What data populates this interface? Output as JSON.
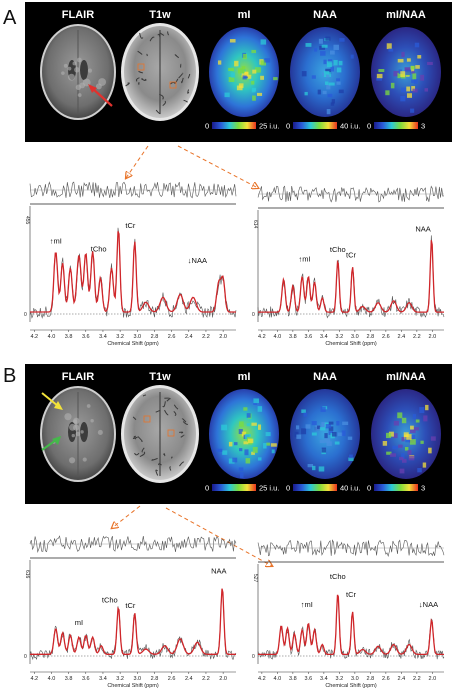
{
  "panels": [
    {
      "letter": "A",
      "mri_labels": [
        "FLAIR",
        "T1w",
        "mI",
        "NAA",
        "mI/NAA"
      ],
      "colorbars": [
        {
          "min": "0",
          "max": "25 i.u."
        },
        {
          "min": "0",
          "max": "40 i.u."
        },
        {
          "min": "0",
          "max": "3"
        }
      ],
      "spectra": [
        {
          "y_label": "455",
          "x_title": "Chemical Shift (ppm)",
          "x_ticks": [
            "4.2",
            "4.0",
            "3.8",
            "3.6",
            "3.4",
            "3.2",
            "3.0",
            "2.8",
            "2.6",
            "2.4",
            "2.2",
            "2.0"
          ],
          "zero_label": "0",
          "peaks": [
            "↑mI",
            "tCho",
            "tCr",
            "↓NAA"
          ]
        },
        {
          "y_label": "614",
          "x_title": "Chemical Shift (ppm)",
          "x_ticks": [
            "4.2",
            "4.0",
            "3.8",
            "3.6",
            "3.4",
            "3.2",
            "3.0",
            "2.8",
            "2.6",
            "2.4",
            "2.2",
            "2.0"
          ],
          "zero_label": "0",
          "peaks": [
            "↑mI",
            "tCho",
            "tCr",
            "NAA"
          ]
        }
      ]
    },
    {
      "letter": "B",
      "mri_labels": [
        "FLAIR",
        "T1w",
        "mI",
        "NAA",
        "mI/NAA"
      ],
      "colorbars": [
        {
          "min": "0",
          "max": "25 i.u."
        },
        {
          "min": "0",
          "max": "40 i.u."
        },
        {
          "min": "0",
          "max": "3"
        }
      ],
      "spectra": [
        {
          "y_label": "616",
          "x_title": "Chemical Shift (ppm)",
          "x_ticks": [
            "4.2",
            "4.0",
            "3.8",
            "3.6",
            "3.4",
            "3.2",
            "3.0",
            "2.8",
            "2.6",
            "2.4",
            "2.2",
            "2.0"
          ],
          "zero_label": "0",
          "peaks": [
            "mI",
            "tCho",
            "tCr",
            "NAA"
          ]
        },
        {
          "y_label": "527",
          "x_title": "Chemical Shift (ppm)",
          "x_ticks": [
            "4.2",
            "4.0",
            "3.8",
            "3.6",
            "3.4",
            "3.2",
            "3.0",
            "2.8",
            "2.6",
            "2.4",
            "2.2",
            "2.0"
          ],
          "zero_label": "0",
          "peaks": [
            "↑mI",
            "tCho",
            "tCr",
            "↓NAA"
          ]
        }
      ]
    }
  ],
  "colors": {
    "fit_line": "#d0262a",
    "spectrum_line": "#555555",
    "arrow_orange": "#e8742a",
    "arrow_red": "#e0322e",
    "arrow_yellow": "#f2e23a",
    "arrow_green": "#45b84b"
  }
}
